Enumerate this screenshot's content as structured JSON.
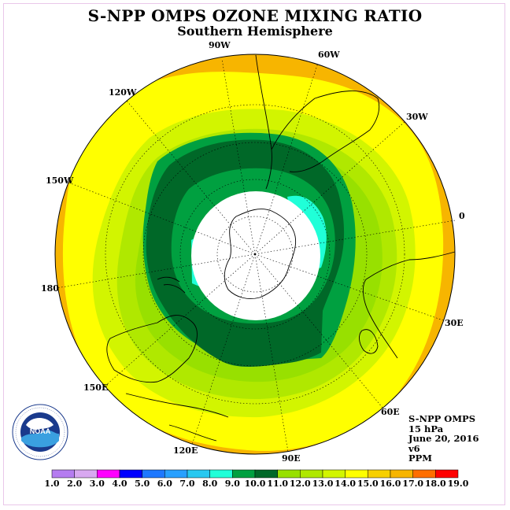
{
  "header": {
    "title": "S-NPP OMPS OZONE MIXING RATIO",
    "subtitle": "Southern Hemisphere"
  },
  "map": {
    "projection": "polar stereographic",
    "hemisphere": "south",
    "longitude_labels": [
      "90W",
      "60W",
      "120W",
      "30W",
      "150W",
      "0",
      "180",
      "30E",
      "150E",
      "60E",
      "120E",
      "90E"
    ],
    "contour_fill_colors": {
      "outer_orange": "#f7b500",
      "yellow": "#ffff00",
      "yellow_green": "#d2f500",
      "light_green": "#b0e800",
      "mid_green": "#98e000",
      "green": "#00a040",
      "dark_green": "#006828",
      "cyan": "#20ffd8",
      "no_data": "#ffffff"
    }
  },
  "info": {
    "lines": [
      "S-NPP OMPS",
      "15 hPa",
      "June 20, 2016",
      "v6",
      "PPM"
    ]
  },
  "logo": {
    "text": "NOAA",
    "ring_text": "NATIONAL OCEANIC AND ATMOSPHERIC ADMINISTRATION · U.S. DEPARTMENT OF COMMERCE"
  },
  "colorbar": {
    "unit": "PPM",
    "ticks": [
      "1.0",
      "2.0",
      "3.0",
      "4.0",
      "5.0",
      "6.0",
      "7.0",
      "8.0",
      "9.0",
      "10.0",
      "11.0",
      "12.0",
      "13.0",
      "14.0",
      "15.0",
      "16.0",
      "17.0",
      "18.0",
      "19.0"
    ],
    "colors": [
      "#b57cf0",
      "#d8a8f0",
      "#ff00ff",
      "#0000ff",
      "#1e78ff",
      "#28a0ff",
      "#28c8f0",
      "#20ffd8",
      "#00a040",
      "#006828",
      "#98e000",
      "#b0e800",
      "#d2f500",
      "#ffff00",
      "#f7d000",
      "#f7b500",
      "#ff6e00",
      "#ff0000",
      "#8b5a2b"
    ]
  }
}
